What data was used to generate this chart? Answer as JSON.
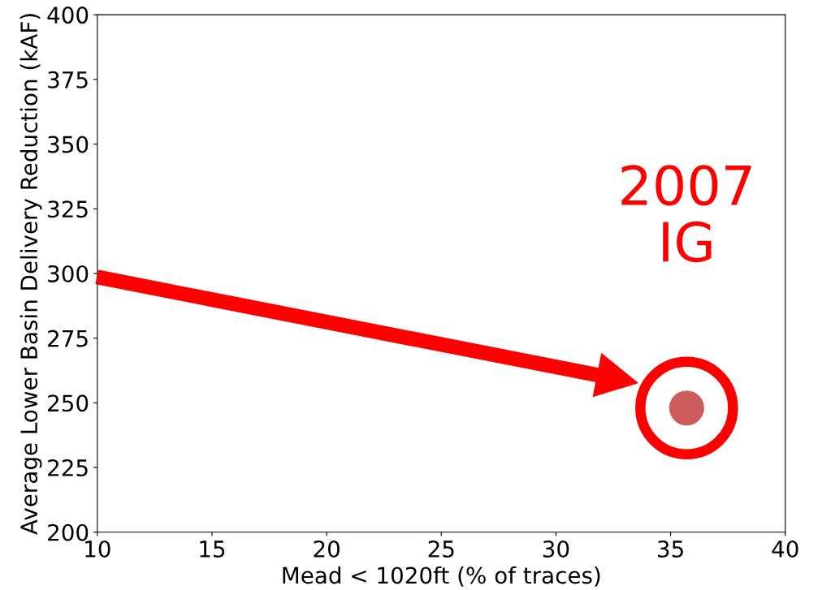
{
  "chart_data": {
    "type": "scatter",
    "xlabel": "Mead < 1020ft (% of traces)",
    "ylabel": "Average Lower Basin Delivery Reduction (kAF)",
    "x": [
      35.7
    ],
    "series": [
      {
        "color": "#cd5c5c",
        "values": [
          248
        ]
      }
    ],
    "xlim": [
      10,
      40
    ],
    "xticks": [
      10,
      15,
      20,
      25,
      30,
      35,
      40
    ],
    "ylim": [
      200,
      400
    ],
    "yticks": [
      200,
      225,
      250,
      275,
      300,
      325,
      350,
      375,
      400
    ],
    "grid": false,
    "legend": false,
    "marker": "circle",
    "annotations": [
      {
        "text": "2007\nIG",
        "x": 35.7,
        "y": 248
      }
    ]
  }
}
